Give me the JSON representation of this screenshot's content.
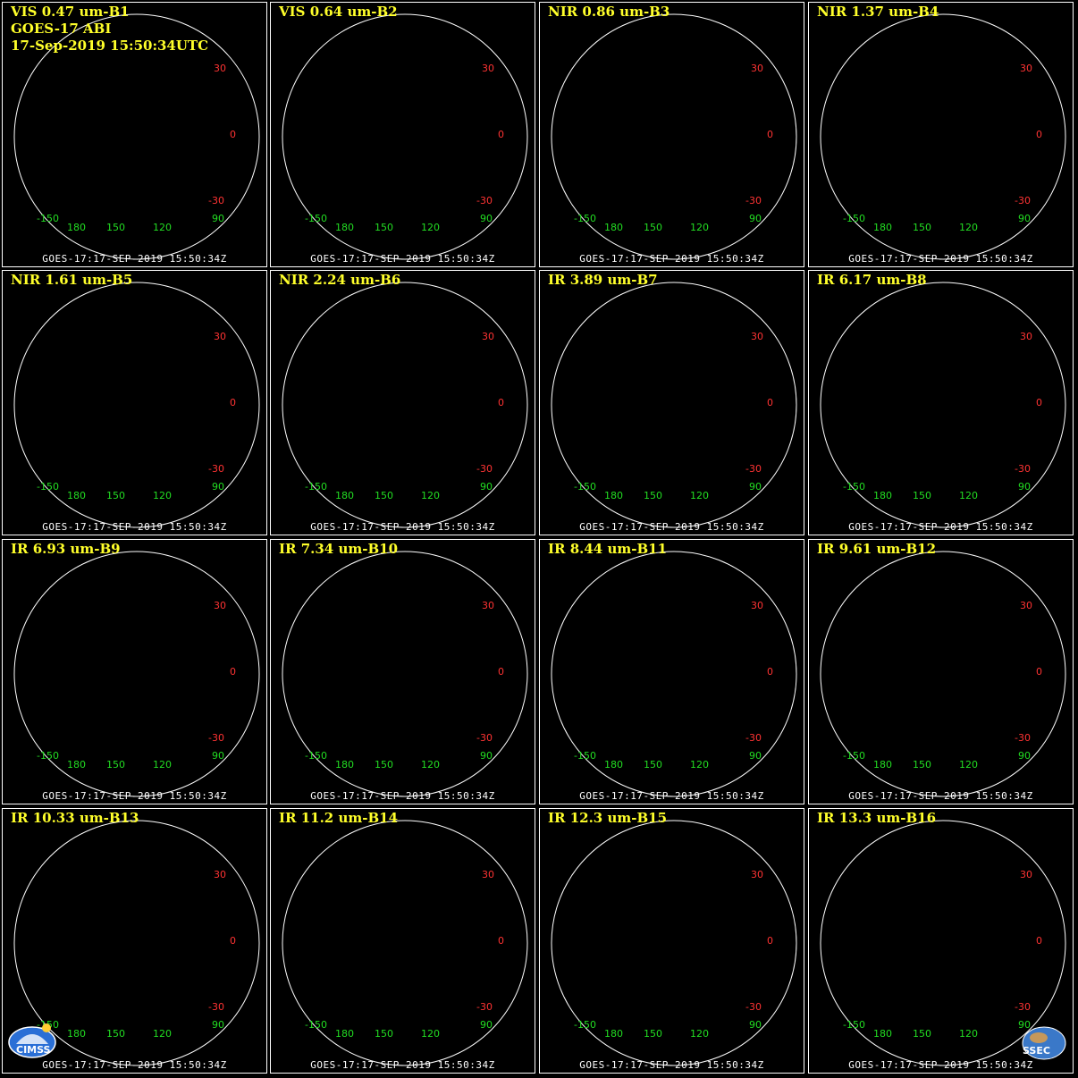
{
  "header_lines": [
    "GOES-17 ABI",
    "17-Sep-2019 15:50:34UTC"
  ],
  "footer": "GOES-17:17-SEP-2019 15:50:34Z",
  "lat_labels": [
    "30",
    "0",
    "-30"
  ],
  "lon_labels": [
    "-150",
    "180",
    "150",
    "120",
    "90"
  ],
  "logos": {
    "left": "CIMSS",
    "right": "SSEC"
  },
  "panels": [
    {
      "title": "VIS 0.47 um-B1",
      "style": "vis",
      "brightness": 0.45
    },
    {
      "title": "VIS 0.64 um-B2",
      "style": "vis",
      "brightness": 0.4
    },
    {
      "title": "NIR 0.86 um-B3",
      "style": "vis",
      "brightness": 0.35
    },
    {
      "title": "NIR 1.37 um-B4",
      "style": "vis",
      "brightness": 0.15
    },
    {
      "title": "NIR 1.61 um-B5",
      "style": "vis",
      "brightness": 0.22
    },
    {
      "title": "NIR 2.24 um-B6",
      "style": "vis",
      "brightness": 0.2
    },
    {
      "title": "IR 3.89 um-B7",
      "style": "ir-red"
    },
    {
      "title": "IR 6.17 um-B8",
      "style": "wv-blue"
    },
    {
      "title": "IR 6.93 um-B9",
      "style": "wv-blue"
    },
    {
      "title": "IR 7.34 um-B10",
      "style": "wv-olive"
    },
    {
      "title": "IR 8.44 um-B11",
      "style": "ir-orange"
    },
    {
      "title": "IR 9.61 um-B12",
      "style": "wv-yellow"
    },
    {
      "title": "IR 10.33 um-B13",
      "style": "ir-red"
    },
    {
      "title": "IR 11.2 um-B14",
      "style": "ir-red"
    },
    {
      "title": "IR 12.3 um-B15",
      "style": "ir-red"
    },
    {
      "title": "IR 13.3 um-B16",
      "style": "wv-yellow"
    }
  ],
  "colors": {
    "title": "#ffff2a",
    "lon_label": "#22dd22",
    "lat_label": "#ff3333",
    "border": "#ffffff"
  }
}
